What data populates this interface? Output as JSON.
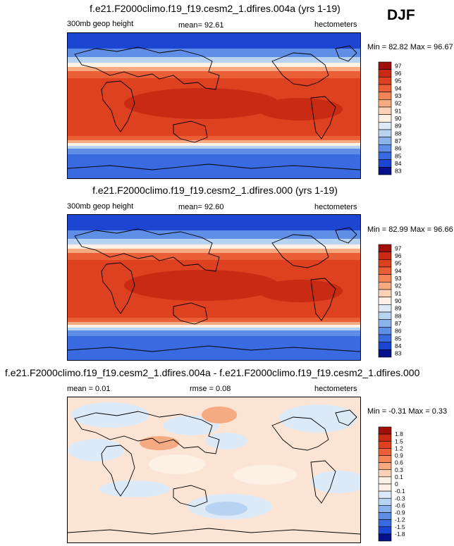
{
  "season": "DJF",
  "units": "hectometers",
  "chart_data": [
    {
      "type": "heatmap",
      "title": "f.e21.F2000climo.f19_f19.cesm2_1.dfires.004a (yrs 1-19)",
      "variable": "300mb geop height",
      "stat_text": "mean=  92.61",
      "mean": 92.61,
      "units": "hectometers",
      "minmax_text": "Min = 82.82 Max = 96.67",
      "min": 82.82,
      "max": 96.67,
      "colorbar": {
        "levels": [
          "97",
          "96",
          "95",
          "94",
          "93",
          "92",
          "91",
          "90",
          "89",
          "88",
          "87",
          "86",
          "85",
          "84",
          "83"
        ],
        "colors": [
          "#a0100a",
          "#c92a14",
          "#de4120",
          "#ea5f36",
          "#f28455",
          "#f6aa82",
          "#fbd2b8",
          "#fdf0e5",
          "#dce9f7",
          "#b8d2f2",
          "#8cb2ec",
          "#5f8ee6",
          "#3a6ae0",
          "#1c45d2",
          "#06128a"
        ]
      }
    },
    {
      "type": "heatmap",
      "title": "f.e21.F2000climo.f19_f19.cesm2_1.dfires.000 (yrs 1-19)",
      "variable": "300mb geop height",
      "stat_text": "mean=  92.60",
      "mean": 92.6,
      "units": "hectometers",
      "minmax_text": "Min = 82.99 Max = 96.66",
      "min": 82.99,
      "max": 96.66,
      "colorbar": {
        "levels": [
          "97",
          "96",
          "95",
          "94",
          "93",
          "92",
          "91",
          "90",
          "89",
          "88",
          "87",
          "86",
          "85",
          "84",
          "83"
        ],
        "colors": [
          "#a0100a",
          "#c92a14",
          "#de4120",
          "#ea5f36",
          "#f28455",
          "#f6aa82",
          "#fbd2b8",
          "#fdf0e5",
          "#dce9f7",
          "#b8d2f2",
          "#8cb2ec",
          "#5f8ee6",
          "#3a6ae0",
          "#1c45d2",
          "#06128a"
        ]
      }
    },
    {
      "type": "heatmap",
      "title": "f.e21.F2000climo.f19_f19.cesm2_1.dfires.004a - f.e21.F2000climo.f19_f19.cesm2_1.dfires.000",
      "stat_text": "mean =  0.01",
      "mean": 0.01,
      "rmse_text": "rmse =  0.08",
      "rmse": 0.08,
      "units": "hectometers",
      "minmax_text": "Min = -0.31 Max =  0.33",
      "min": -0.31,
      "max": 0.33,
      "colorbar": {
        "levels": [
          "1.8",
          "1.5",
          "1.2",
          "0.9",
          "0.6",
          "0.3",
          "0.1",
          "0",
          "-0.1",
          "-0.3",
          "-0.6",
          "-0.9",
          "-1.2",
          "-1.5",
          "-1.8"
        ],
        "colors": [
          "#a0100a",
          "#c92a14",
          "#de4120",
          "#ea5f36",
          "#f28455",
          "#f6aa82",
          "#fbd2b8",
          "#fdf0e5",
          "#fdf0e5",
          "#dce9f7",
          "#b8d2f2",
          "#8cb2ec",
          "#5f8ee6",
          "#3a6ae0",
          "#1c45d2",
          "#06128a"
        ]
      }
    }
  ]
}
